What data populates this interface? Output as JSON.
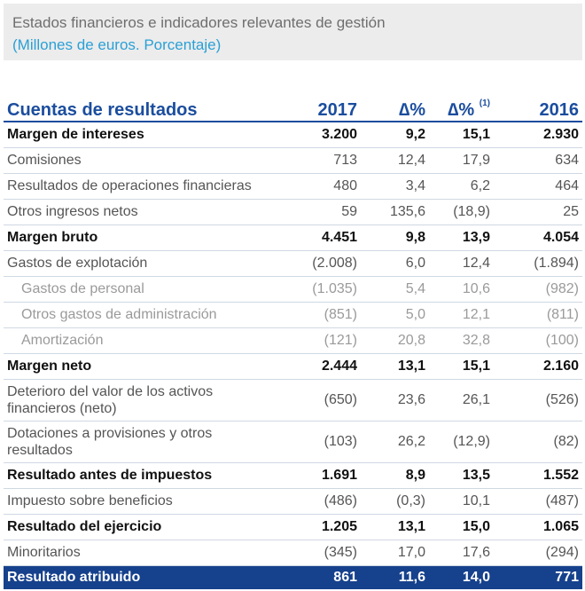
{
  "header": {
    "title": "Estados financieros e indicadores relevantes de gestión",
    "subtitle": "(Millones de euros. Porcentaje)"
  },
  "table": {
    "columns": [
      "Cuentas de resultados",
      "2017",
      "∆%",
      "∆%",
      "2016"
    ],
    "footnote_mark": "(1)",
    "rows": [
      {
        "label": "Margen de intereses",
        "values": [
          "3.200",
          "9,2",
          "15,1",
          "2.930"
        ],
        "style": "bold"
      },
      {
        "label": "Comisiones",
        "values": [
          "713",
          "12,4",
          "17,9",
          "634"
        ],
        "style": "normal"
      },
      {
        "label": "Resultados de operaciones financieras",
        "values": [
          "480",
          "3,4",
          "6,2",
          "464"
        ],
        "style": "normal"
      },
      {
        "label": "Otros ingresos netos",
        "values": [
          "59",
          "135,6",
          "(18,9)",
          "25"
        ],
        "style": "normal"
      },
      {
        "label": "Margen bruto",
        "values": [
          "4.451",
          "9,8",
          "13,9",
          "4.054"
        ],
        "style": "bold"
      },
      {
        "label": "Gastos de explotación",
        "values": [
          "(2.008)",
          "6,0",
          "12,4",
          "(1.894)"
        ],
        "style": "normal"
      },
      {
        "label": "Gastos de personal",
        "values": [
          "(1.035)",
          "5,4",
          "10,6",
          "(982)"
        ],
        "style": "sub"
      },
      {
        "label": "Otros gastos de administración",
        "values": [
          "(851)",
          "5,0",
          "12,1",
          "(811)"
        ],
        "style": "sub"
      },
      {
        "label": "Amortización",
        "values": [
          "(121)",
          "20,8",
          "32,8",
          "(100)"
        ],
        "style": "sub"
      },
      {
        "label": "Margen neto",
        "values": [
          "2.444",
          "13,1",
          "15,1",
          "2.160"
        ],
        "style": "bold"
      },
      {
        "label": "Deterioro del valor de los activos financieros (neto)",
        "values": [
          "(650)",
          "23,6",
          "26,1",
          "(526)"
        ],
        "style": "tall"
      },
      {
        "label": "Dotaciones a provisiones y otros resultados",
        "values": [
          "(103)",
          "26,2",
          "(12,9)",
          "(82)"
        ],
        "style": "tall"
      },
      {
        "label": "Resultado antes de impuestos",
        "values": [
          "1.691",
          "8,9",
          "13,5",
          "1.552"
        ],
        "style": "bold"
      },
      {
        "label": "Impuesto sobre beneficios",
        "values": [
          "(486)",
          "(0,3)",
          "10,1",
          "(487)"
        ],
        "style": "normal"
      },
      {
        "label": "Resultado del ejercicio",
        "values": [
          "1.205",
          "13,1",
          "15,0",
          "1.065"
        ],
        "style": "bold"
      },
      {
        "label": "Minoritarios",
        "values": [
          "(345)",
          "17,0",
          "17,6",
          "(294)"
        ],
        "style": "normal"
      },
      {
        "label": "Resultado atribuido",
        "values": [
          "861",
          "11,6",
          "14,0",
          "771"
        ],
        "style": "final"
      }
    ]
  }
}
